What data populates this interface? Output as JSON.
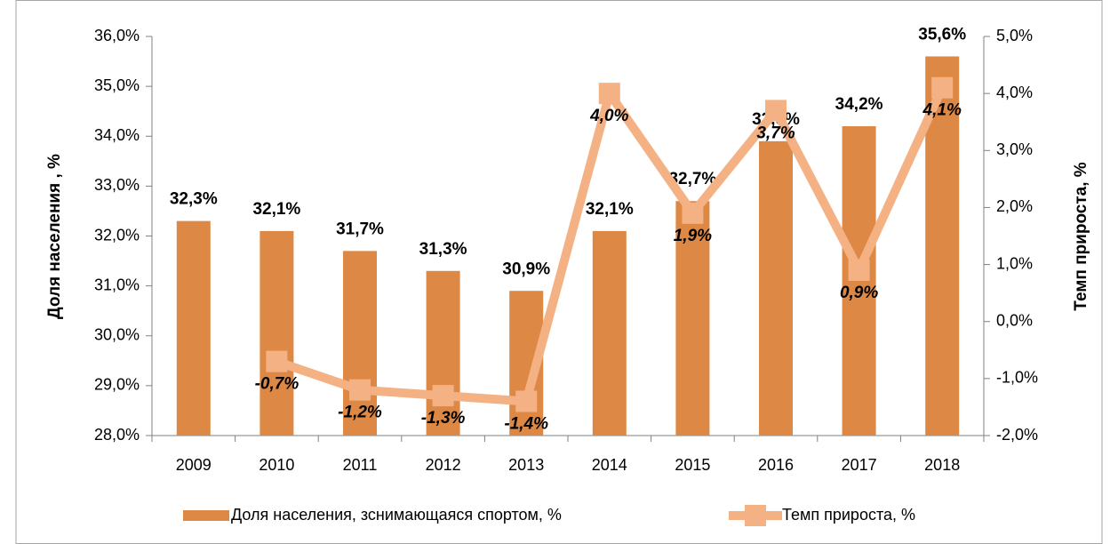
{
  "chart_data": {
    "type": "bar",
    "categories": [
      "2009",
      "2010",
      "2011",
      "2012",
      "2013",
      "2014",
      "2015",
      "2016",
      "2017",
      "2018"
    ],
    "y_label": "Доля населения , %",
    "y2_label": "Темп прироста, %",
    "ylim": [
      28,
      36
    ],
    "yticks": [
      {
        "value": 28,
        "label": "28,0%"
      },
      {
        "value": 29,
        "label": "29,0%"
      },
      {
        "value": 30,
        "label": "30,0%"
      },
      {
        "value": 31,
        "label": "31,0%"
      },
      {
        "value": 32,
        "label": "32,0%"
      },
      {
        "value": 33,
        "label": "33,0%"
      },
      {
        "value": 34,
        "label": "34,0%"
      },
      {
        "value": 35,
        "label": "35,0%"
      },
      {
        "value": 36,
        "label": "36,0%"
      }
    ],
    "y2lim": [
      -2,
      5
    ],
    "y2ticks": [
      {
        "value": -2,
        "label": "-2,0%"
      },
      {
        "value": -1,
        "label": "-1,0%"
      },
      {
        "value": 0,
        "label": "0,0%"
      },
      {
        "value": 1,
        "label": "1,0%"
      },
      {
        "value": 2,
        "label": "2,0%"
      },
      {
        "value": 3,
        "label": "3,0%"
      },
      {
        "value": 4,
        "label": "4,0%"
      },
      {
        "value": 5,
        "label": "5,0%"
      }
    ],
    "legend": "bottom",
    "series": [
      {
        "name": "Доля населения, зснимающаяся спортом, %",
        "type": "bar",
        "color": "#dd8844",
        "values": [
          32.3,
          32.1,
          31.7,
          31.3,
          30.9,
          32.1,
          32.7,
          33.9,
          34.2,
          35.6
        ],
        "value_labels": [
          "32,3%",
          "32,1%",
          "31,7%",
          "31,3%",
          "30,9%",
          "32,1%",
          "32,7%",
          "33,9%",
          "34,2%",
          "35,6%"
        ]
      },
      {
        "name": "Темп прироста, %",
        "type": "line",
        "axis": "y2",
        "color": "#f4b183",
        "values": [
          null,
          -0.7,
          -1.2,
          -1.3,
          -1.4,
          4.0,
          1.9,
          3.7,
          0.9,
          4.1
        ],
        "value_labels": [
          null,
          "-0,7%",
          "-1,2%",
          "-1,3%",
          "-1,4%",
          "4,0%",
          "1,9%",
          "3,7%",
          "0,9%",
          "4,1%"
        ]
      }
    ]
  }
}
